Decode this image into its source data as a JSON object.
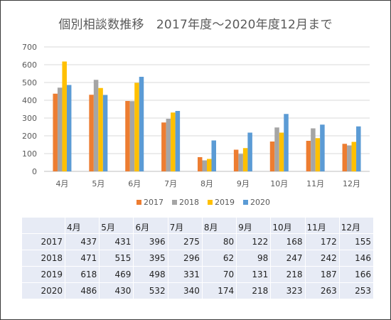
{
  "chart_data": {
    "type": "bar",
    "title": "個別相談数推移　2017年度～2020年度12月まで",
    "categories": [
      "4月",
      "5月",
      "6月",
      "7月",
      "8月",
      "9月",
      "10月",
      "11月",
      "12月"
    ],
    "series": [
      {
        "name": "2017",
        "color": "#ed7d31",
        "values": [
          437,
          431,
          396,
          275,
          80,
          122,
          168,
          172,
          155
        ]
      },
      {
        "name": "2018",
        "color": "#a5a5a5",
        "values": [
          471,
          515,
          395,
          296,
          62,
          98,
          247,
          242,
          146
        ]
      },
      {
        "name": "2019",
        "color": "#ffc000",
        "values": [
          618,
          469,
          498,
          331,
          70,
          131,
          218,
          187,
          166
        ]
      },
      {
        "name": "2020",
        "color": "#5b9bd5",
        "values": [
          486,
          430,
          532,
          340,
          174,
          218,
          323,
          263,
          253
        ]
      }
    ],
    "ylim": [
      0,
      700
    ],
    "yticks": [
      0,
      100,
      200,
      300,
      400,
      500,
      600,
      700
    ],
    "grid": true,
    "legend": "bottom",
    "xlabel": "",
    "ylabel": ""
  }
}
